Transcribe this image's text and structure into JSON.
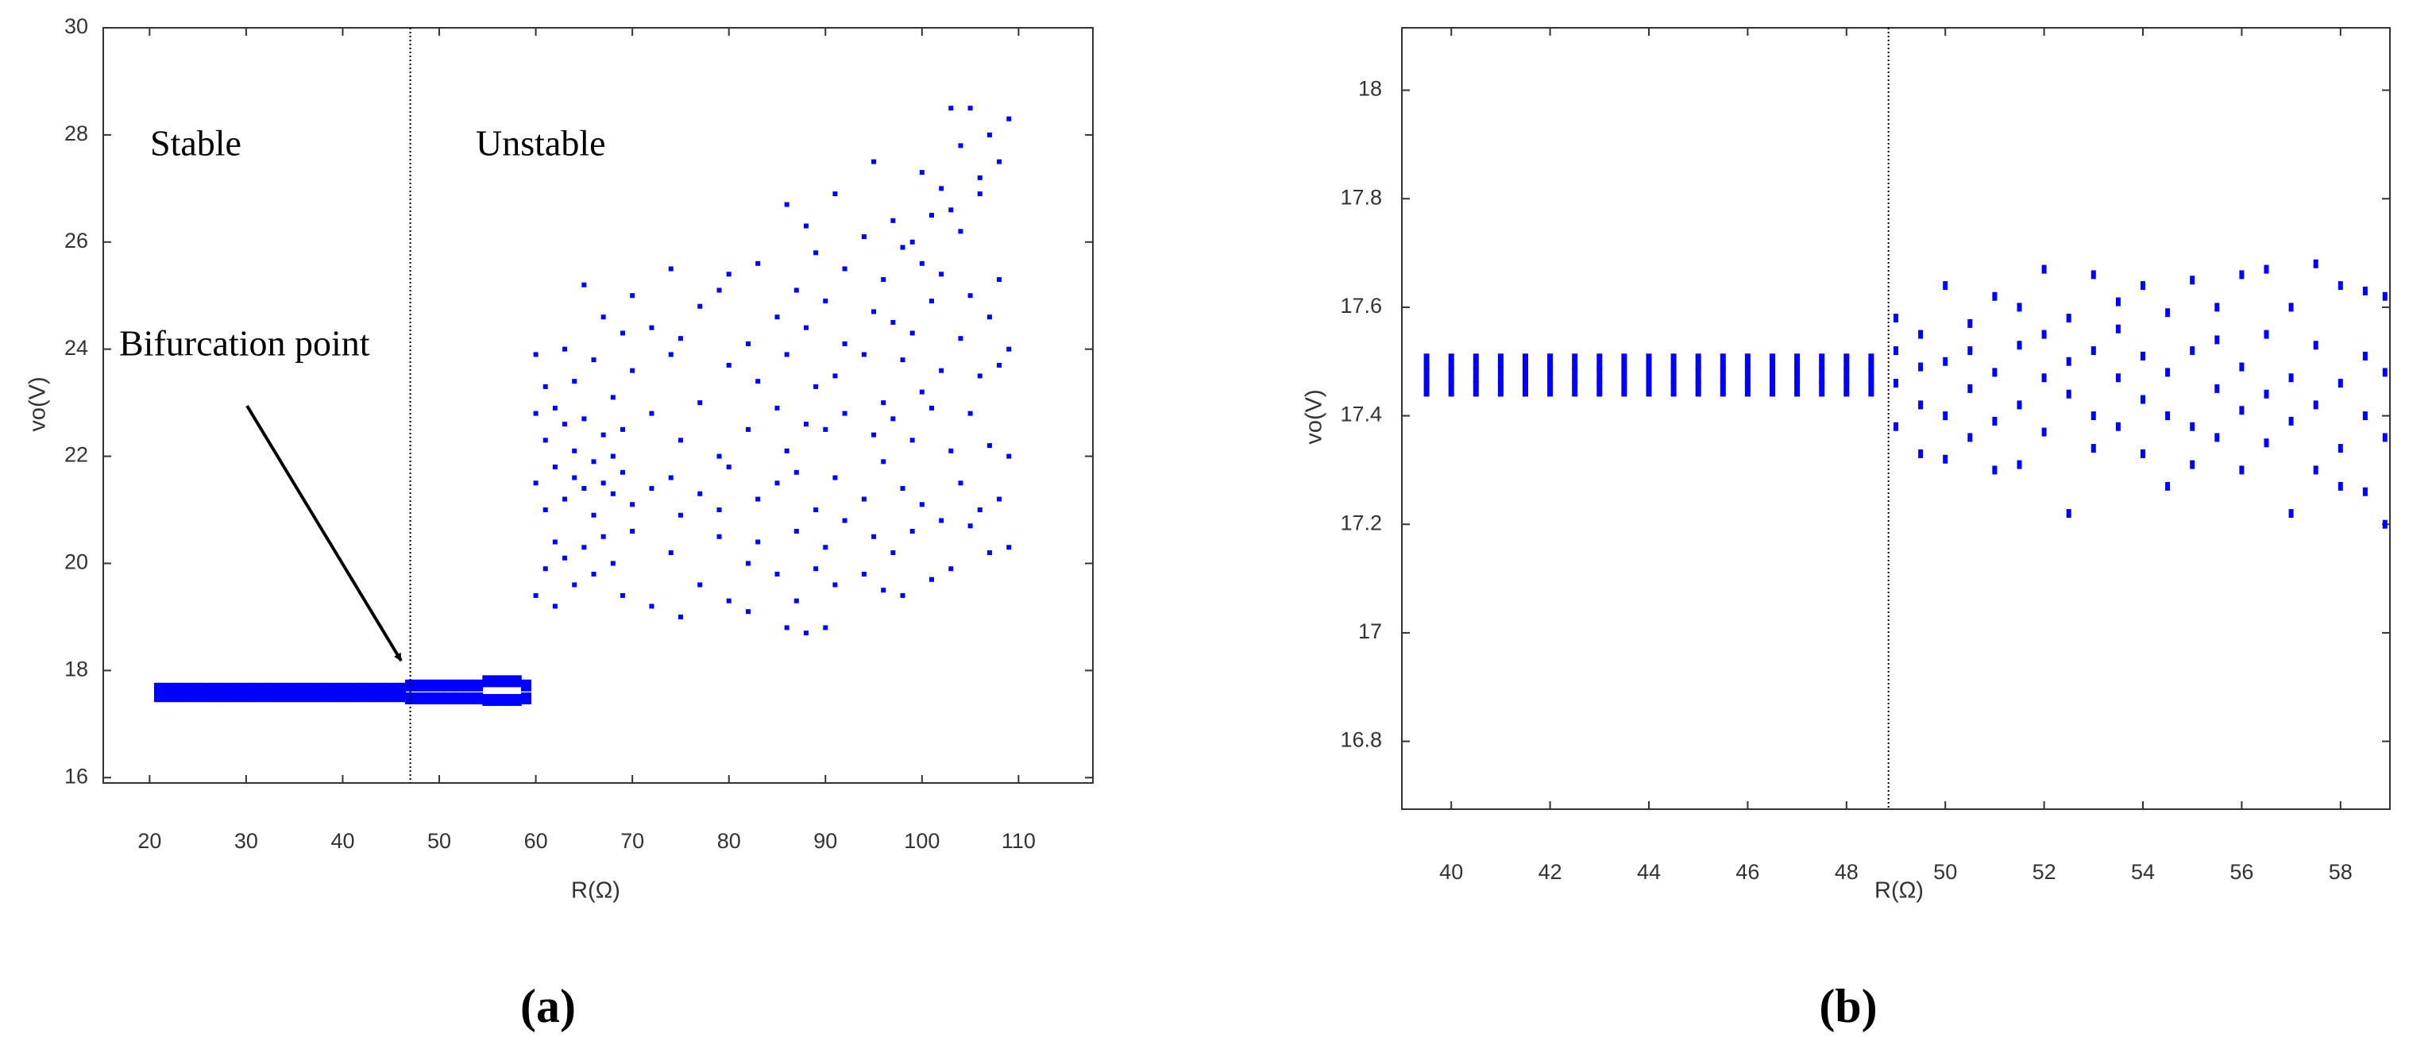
{
  "chart_data": [
    {
      "type": "scatter",
      "caption": "(a)",
      "x_label": "R(Ω)",
      "y_label": "vo(V)",
      "annotations": [
        "Stable",
        "Unstable",
        "Bifurcation point"
      ],
      "vline": 47,
      "xlim": [
        15.2,
        117.7
      ],
      "ylim": [
        15.9,
        30
      ],
      "xticks": [
        20,
        30,
        40,
        50,
        60,
        70,
        80,
        90,
        100,
        110
      ],
      "yticks": [
        16,
        18,
        20,
        22,
        24,
        26,
        28,
        30
      ],
      "series": [
        {
          "color": "#0000ff",
          "x": [
            21,
            21,
            22,
            22,
            23,
            23,
            24,
            24,
            25,
            25,
            26,
            26,
            27,
            27,
            28,
            28,
            29,
            29,
            30,
            30,
            31,
            31,
            32,
            32,
            33,
            33,
            34,
            34,
            35,
            35,
            36,
            36,
            37,
            37,
            38,
            38,
            39,
            39,
            40,
            40,
            41,
            41,
            42,
            42,
            43,
            43,
            44,
            44,
            45,
            45,
            46,
            46,
            47,
            47,
            48,
            48,
            49,
            49,
            50,
            50,
            51,
            51,
            52,
            52,
            53,
            53,
            54,
            54,
            55,
            55,
            56,
            56,
            57,
            57,
            58,
            58,
            59,
            59
          ],
          "y": [
            17.52,
            17.66,
            17.52,
            17.66,
            17.52,
            17.66,
            17.52,
            17.66,
            17.52,
            17.66,
            17.52,
            17.66,
            17.52,
            17.66,
            17.52,
            17.66,
            17.52,
            17.66,
            17.52,
            17.66,
            17.52,
            17.66,
            17.52,
            17.66,
            17.52,
            17.66,
            17.52,
            17.66,
            17.52,
            17.66,
            17.52,
            17.66,
            17.52,
            17.66,
            17.52,
            17.66,
            17.52,
            17.66,
            17.52,
            17.66,
            17.52,
            17.66,
            17.52,
            17.66,
            17.52,
            17.66,
            17.52,
            17.66,
            17.52,
            17.66,
            17.52,
            17.66,
            17.48,
            17.72,
            17.48,
            17.72,
            17.48,
            17.72,
            17.48,
            17.72,
            17.48,
            17.72,
            17.48,
            17.72,
            17.48,
            17.72,
            17.48,
            17.72,
            17.45,
            17.8,
            17.45,
            17.8,
            17.45,
            17.8,
            17.45,
            17.8,
            17.48,
            17.72
          ]
        },
        {
          "color": "#0000ff",
          "x": [
            60,
            60,
            60,
            60,
            61,
            61,
            61,
            61,
            62,
            62,
            62,
            62,
            63,
            63,
            63,
            63,
            64,
            64,
            64,
            64,
            65,
            65,
            65,
            65,
            66,
            66,
            66,
            66,
            67,
            67,
            67,
            67,
            68,
            68,
            68,
            68,
            69,
            69,
            69,
            69,
            70,
            70,
            70,
            70,
            72,
            72,
            72,
            72,
            74,
            74,
            74,
            74,
            75,
            75,
            75,
            75,
            77,
            77,
            77,
            77,
            79,
            79,
            79,
            79,
            80,
            80,
            80,
            80,
            82,
            82,
            82,
            82,
            83,
            83,
            83,
            83,
            85,
            85,
            85,
            85,
            86,
            86,
            86,
            86,
            87,
            87,
            87,
            87,
            88,
            88,
            88,
            88,
            89,
            89,
            89,
            89,
            90,
            90,
            90,
            90,
            91,
            91,
            91,
            91,
            92,
            92,
            92,
            92,
            94,
            94,
            94,
            94,
            95,
            95,
            95,
            95,
            96,
            96,
            96,
            96,
            97,
            97,
            97,
            97,
            98,
            98,
            98,
            98,
            99,
            99,
            99,
            99,
            100,
            100,
            100,
            100,
            101,
            101,
            101,
            101,
            102,
            102,
            102,
            102,
            103,
            103,
            103,
            103,
            104,
            104,
            104,
            104,
            105,
            105,
            105,
            105,
            106,
            106,
            106,
            106,
            107,
            107,
            107,
            107,
            108,
            108,
            108,
            108,
            109,
            109,
            109,
            109
          ],
          "y": [
            23.9,
            21.5,
            19.4,
            22.8,
            21.0,
            22.3,
            19.9,
            23.3,
            20.4,
            21.8,
            22.9,
            19.2,
            21.2,
            22.6,
            20.1,
            24.0,
            21.6,
            19.6,
            22.1,
            23.4,
            25.2,
            21.4,
            20.3,
            22.7,
            20.9,
            21.9,
            23.8,
            19.8,
            21.5,
            22.4,
            20.5,
            24.6,
            20.0,
            21.3,
            23.1,
            22.0,
            21.7,
            19.4,
            24.3,
            22.5,
            21.1,
            23.6,
            20.6,
            25.0,
            21.4,
            19.2,
            22.8,
            24.4,
            20.2,
            21.6,
            23.9,
            25.5,
            19.0,
            22.3,
            20.9,
            24.2,
            21.3,
            23.0,
            19.6,
            24.8,
            20.5,
            22.0,
            25.1,
            21.0,
            19.3,
            23.7,
            21.8,
            25.4,
            20.0,
            22.5,
            24.1,
            19.1,
            21.2,
            23.4,
            25.6,
            20.4,
            22.9,
            19.8,
            24.6,
            21.5,
            18.8,
            23.9,
            26.7,
            22.1,
            20.6,
            25.1,
            21.7,
            19.3,
            24.4,
            22.6,
            26.3,
            18.7,
            21.0,
            23.3,
            25.8,
            19.9,
            22.5,
            20.3,
            24.9,
            18.8,
            26.9,
            21.6,
            23.5,
            19.6,
            22.8,
            25.5,
            20.8,
            24.1,
            23.9,
            21.2,
            26.1,
            19.8,
            27.5,
            22.4,
            24.7,
            20.5,
            25.3,
            19.5,
            23.0,
            21.9,
            26.4,
            22.7,
            20.2,
            24.5,
            23.8,
            25.9,
            19.4,
            21.4,
            26.0,
            22.3,
            24.3,
            20.6,
            25.6,
            21.1,
            27.3,
            23.2,
            26.5,
            19.7,
            22.9,
            24.9,
            27.0,
            20.8,
            23.6,
            25.4,
            28.5,
            22.1,
            26.6,
            19.9,
            27.8,
            24.2,
            21.5,
            26.2,
            28.5,
            22.8,
            25.0,
            20.7,
            27.2,
            23.5,
            21.0,
            26.9,
            28.0,
            24.6,
            22.2,
            20.2,
            27.5,
            25.3,
            23.7,
            21.2,
            28.3,
            24.0,
            22.0,
            20.3
          ]
        }
      ]
    },
    {
      "type": "scatter",
      "caption": "(b)",
      "x_label": "R(Ω)",
      "y_label": "vo(V)",
      "vline": 48.85,
      "xlim": [
        39,
        59
      ],
      "ylim": [
        16.675,
        18.115
      ],
      "xticks": [
        40,
        42,
        44,
        46,
        48,
        50,
        52,
        54,
        56,
        58
      ],
      "yticks": [
        16.8,
        17,
        17.2,
        17.4,
        17.6,
        17.8,
        18
      ],
      "series": [
        {
          "color": "#0000ff",
          "x": [
            39.5,
            39.5,
            39.5,
            40,
            40,
            40,
            40.5,
            40.5,
            40.5,
            41,
            41,
            41,
            41.5,
            41.5,
            41.5,
            42,
            42,
            42,
            42.5,
            42.5,
            42.5,
            43,
            43,
            43,
            43.5,
            43.5,
            43.5,
            44,
            44,
            44,
            44.5,
            44.5,
            44.5,
            45,
            45,
            45,
            45.5,
            45.5,
            45.5,
            46,
            46,
            46,
            46.5,
            46.5,
            46.5,
            47,
            47,
            47,
            47.5,
            47.5,
            47.5,
            48,
            48,
            48,
            48.5,
            48.5,
            48.5
          ],
          "y": [
            17.45,
            17.475,
            17.5,
            17.45,
            17.475,
            17.5,
            17.45,
            17.475,
            17.5,
            17.45,
            17.475,
            17.5,
            17.45,
            17.475,
            17.5,
            17.45,
            17.475,
            17.5,
            17.45,
            17.475,
            17.5,
            17.45,
            17.475,
            17.5,
            17.45,
            17.475,
            17.5,
            17.45,
            17.475,
            17.5,
            17.45,
            17.475,
            17.5,
            17.45,
            17.475,
            17.5,
            17.45,
            17.475,
            17.5,
            17.45,
            17.475,
            17.5,
            17.45,
            17.475,
            17.5,
            17.45,
            17.475,
            17.5,
            17.45,
            17.475,
            17.5,
            17.45,
            17.475,
            17.5,
            17.45,
            17.475,
            17.5
          ]
        },
        {
          "color": "#0000ff",
          "x": [
            49,
            49,
            49,
            49,
            49.5,
            49.5,
            49.5,
            49.5,
            50,
            50,
            50,
            50,
            50.5,
            50.5,
            50.5,
            50.5,
            51,
            51,
            51,
            51,
            51.5,
            51.5,
            51.5,
            51.5,
            52,
            52,
            52,
            52,
            52.5,
            52.5,
            52.5,
            52.5,
            53,
            53,
            53,
            53,
            53.5,
            53.5,
            53.5,
            53.5,
            54,
            54,
            54,
            54,
            54.5,
            54.5,
            54.5,
            54.5,
            55,
            55,
            55,
            55,
            55.5,
            55.5,
            55.5,
            55.5,
            56,
            56,
            56,
            56,
            56.5,
            56.5,
            56.5,
            56.5,
            57,
            57,
            57,
            57,
            57.5,
            57.5,
            57.5,
            57.5,
            58,
            58,
            58,
            58,
            58.5,
            58.5,
            58.5,
            58.5,
            58.9,
            58.9,
            58.9,
            58.9
          ],
          "y": [
            17.58,
            17.46,
            17.38,
            17.52,
            17.55,
            17.42,
            17.33,
            17.49,
            17.64,
            17.5,
            17.4,
            17.32,
            17.57,
            17.45,
            17.36,
            17.52,
            17.62,
            17.48,
            17.39,
            17.3,
            17.6,
            17.53,
            17.42,
            17.31,
            17.67,
            17.47,
            17.37,
            17.55,
            17.58,
            17.44,
            17.22,
            17.5,
            17.66,
            17.52,
            17.4,
            17.34,
            17.61,
            17.47,
            17.38,
            17.56,
            17.64,
            17.43,
            17.33,
            17.51,
            17.59,
            17.48,
            17.27,
            17.4,
            17.65,
            17.52,
            17.38,
            17.31,
            17.6,
            17.45,
            17.36,
            17.54,
            17.66,
            17.49,
            17.3,
            17.41,
            17.67,
            17.55,
            17.44,
            17.35,
            17.6,
            17.47,
            17.22,
            17.39,
            17.68,
            17.53,
            17.42,
            17.3,
            17.64,
            17.46,
            17.34,
            17.27,
            17.63,
            17.51,
            17.4,
            17.26,
            17.62,
            17.48,
            17.36,
            17.2
          ]
        }
      ]
    }
  ]
}
